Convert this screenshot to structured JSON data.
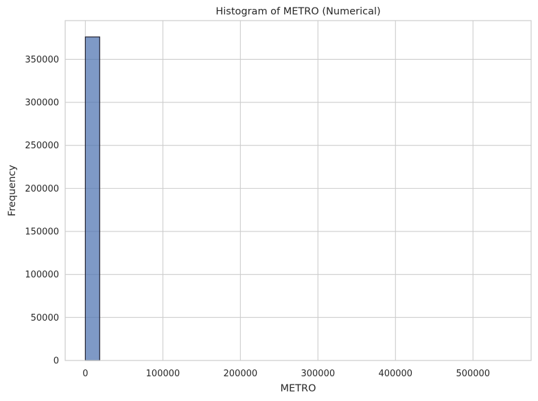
{
  "chart_data": {
    "type": "bar",
    "title": "Histogram of METRO (Numerical)",
    "xlabel": "METRO",
    "ylabel": "Frequency",
    "xlim": [
      -26000,
      575000
    ],
    "ylim": [
      0,
      395000
    ],
    "xticks": [
      0,
      100000,
      200000,
      300000,
      400000,
      500000
    ],
    "yticks": [
      0,
      50000,
      100000,
      150000,
      200000,
      250000,
      300000,
      350000
    ],
    "grid": true,
    "bar_color": "#4c72b0",
    "edge_color": "#1f1f2e",
    "bins": [
      {
        "x0": 0,
        "x1": 18500,
        "value": 376000
      }
    ]
  }
}
